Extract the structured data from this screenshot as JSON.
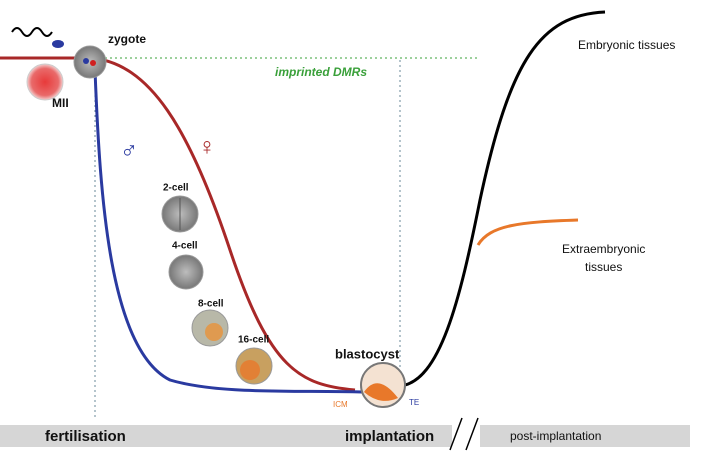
{
  "oocyte": "MII",
  "zygote": "zygote",
  "imprinted": "imprinted DMRs",
  "paternal": "♂",
  "maternal": "♀",
  "embryos": [
    "2-cell",
    "4-cell",
    "8-cell",
    "16-cell"
  ],
  "blastocyst": {
    "label": "blastocyst",
    "icm": "ICM",
    "te": "TE"
  },
  "tissues": {
    "embryonic": "Embryonic tissues",
    "extraembryonic": [
      "Extraembryonic",
      "tissues"
    ]
  },
  "timeline": [
    "fertilisation",
    "implantation",
    "post-implantation"
  ]
}
